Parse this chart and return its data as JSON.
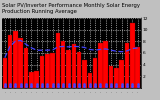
{
  "title": "Solar PV/Inverter Performance Monthly Solar Energy Production Running Average",
  "bar_values": [
    5.2,
    9.1,
    9.8,
    8.5,
    6.8,
    2.8,
    2.9,
    5.5,
    5.8,
    6.0,
    9.5,
    8.0,
    6.5,
    7.5,
    6.2,
    4.8,
    2.5,
    5.2,
    7.8,
    8.0,
    3.8,
    3.5,
    4.8,
    7.8,
    11.2,
    7.0
  ],
  "running_avg": [
    5.2,
    7.15,
    8.03,
    8.15,
    7.48,
    6.9,
    6.47,
    6.48,
    6.49,
    6.52,
    7.05,
    7.13,
    7.05,
    7.14,
    7.09,
    6.95,
    6.6,
    6.5,
    6.61,
    6.7,
    6.48,
    6.3,
    6.22,
    6.36,
    6.76,
    6.87
  ],
  "bar_color": "#ff0000",
  "avg_color": "#4444ff",
  "bg_color": "#c0c0c0",
  "plot_bg": "#000000",
  "grid_color": "#ffffff",
  "ylim": [
    0,
    12
  ],
  "yticks": [
    2,
    4,
    6,
    8,
    10,
    12
  ],
  "title_fontsize": 3.8,
  "tick_fontsize": 3.2,
  "bar_width": 0.85
}
